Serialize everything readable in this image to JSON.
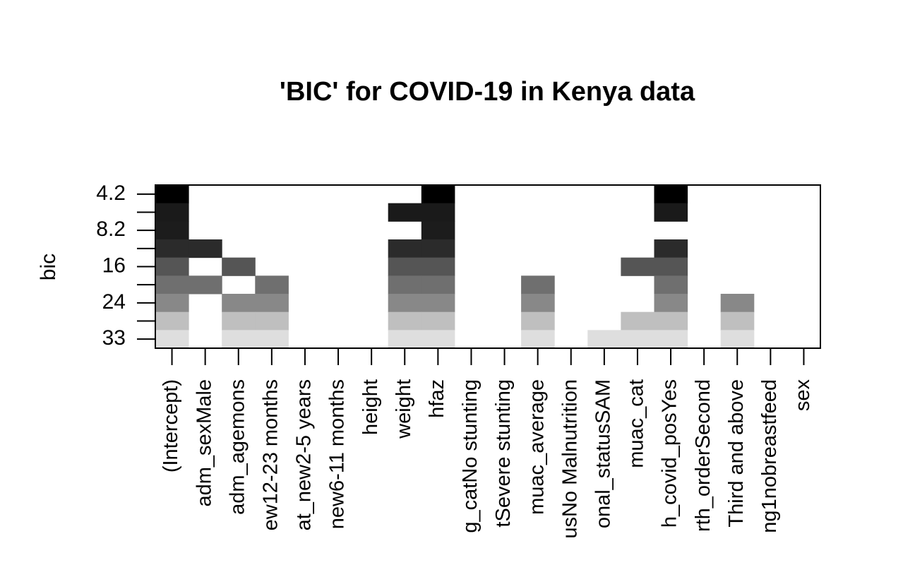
{
  "chart_data": {
    "type": "subset-matrix",
    "title": "'BIC' for COVID-19 in Kenya data",
    "ylabel": "bic",
    "rows": [
      "4.2",
      null,
      "8.2",
      null,
      "16",
      null,
      "24",
      null,
      "33"
    ],
    "row_colors": [
      "#000000",
      "#1a1a1a",
      "#1c1c1c",
      "#2b2b2b",
      "#555555",
      "#6f6f6f",
      "#888888",
      "#bfbfbf",
      "#dedede"
    ],
    "columns": [
      "(Intercept)",
      "adm_sexMale",
      "adm_agemons",
      "ew12-23 months",
      "at_new2-5 years",
      "new6-11 months",
      "height",
      "weight",
      "hfaz",
      "g_catNo stunting",
      "tSevere stunting",
      "muac_average",
      "usNo Malnutrition",
      "onal_statusSAM",
      "muac_cat",
      "h_covid_posYes",
      "rth_orderSecond",
      "Third and above",
      "ng1nobreastfeed",
      "sex"
    ],
    "included": [
      [
        1,
        0,
        0,
        0,
        0,
        0,
        0,
        0,
        1,
        0,
        0,
        0,
        0,
        0,
        0,
        1,
        0,
        0,
        0,
        0
      ],
      [
        1,
        0,
        0,
        0,
        0,
        0,
        0,
        1,
        1,
        0,
        0,
        0,
        0,
        0,
        0,
        1,
        0,
        0,
        0,
        0
      ],
      [
        1,
        0,
        0,
        0,
        0,
        0,
        0,
        0,
        1,
        0,
        0,
        0,
        0,
        0,
        0,
        0,
        0,
        0,
        0,
        0
      ],
      [
        1,
        1,
        0,
        0,
        0,
        0,
        0,
        1,
        1,
        0,
        0,
        0,
        0,
        0,
        0,
        1,
        0,
        0,
        0,
        0
      ],
      [
        1,
        0,
        1,
        0,
        0,
        0,
        0,
        1,
        1,
        0,
        0,
        0,
        0,
        0,
        1,
        1,
        0,
        0,
        0,
        0
      ],
      [
        1,
        1,
        0,
        1,
        0,
        0,
        0,
        1,
        1,
        0,
        0,
        1,
        0,
        0,
        0,
        1,
        0,
        0,
        0,
        0
      ],
      [
        1,
        0,
        1,
        1,
        0,
        0,
        0,
        1,
        1,
        0,
        0,
        1,
        0,
        0,
        0,
        1,
        0,
        1,
        0,
        0
      ],
      [
        1,
        0,
        1,
        1,
        0,
        0,
        0,
        1,
        1,
        0,
        0,
        1,
        0,
        0,
        1,
        1,
        0,
        1,
        0,
        0
      ],
      [
        1,
        0,
        1,
        1,
        0,
        0,
        0,
        1,
        1,
        0,
        0,
        1,
        0,
        1,
        1,
        1,
        0,
        1,
        0,
        0
      ]
    ]
  }
}
